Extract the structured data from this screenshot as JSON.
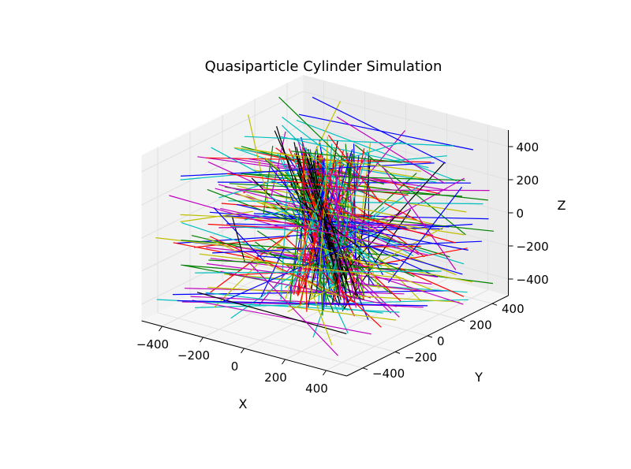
{
  "chart_data": {
    "type": "line3d",
    "title": "Quasiparticle Cylinder Simulation",
    "xlabel": "X",
    "ylabel": "Y",
    "zlabel": "Z",
    "xlim": [
      -500,
      500
    ],
    "ylim": [
      -500,
      500
    ],
    "zlim": [
      -500,
      500
    ],
    "xticks": [
      -400,
      -200,
      0,
      200,
      400
    ],
    "yticks": [
      -400,
      -200,
      0,
      200,
      400
    ],
    "zticks": [
      -400,
      -200,
      0,
      200,
      400
    ],
    "xtick_labels": [
      "−400",
      "−200",
      "0",
      "200",
      "400"
    ],
    "ytick_labels": [
      "−400",
      "−200",
      "0",
      "200",
      "400"
    ],
    "ztick_labels": [
      "−400",
      "−200",
      "0",
      "200",
      "400"
    ],
    "grid": true,
    "colors": [
      "#0000ff",
      "#008000",
      "#ff0000",
      "#00bfbf",
      "#bf00bf",
      "#bfbf00",
      "#000000"
    ],
    "line_count": 280,
    "note_data": "Random straight quasiparticle trajectories (approximate); black tracks concentrated along a diagonal band."
  }
}
